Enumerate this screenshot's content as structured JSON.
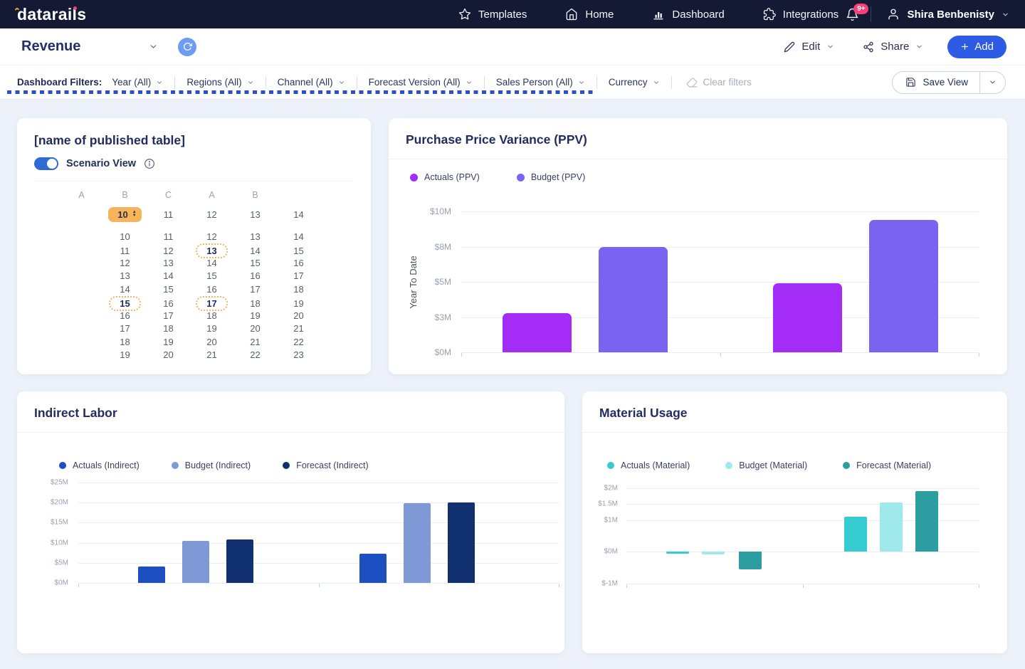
{
  "navbar": {
    "logo": "datarails",
    "items": [
      {
        "label": "Templates"
      },
      {
        "label": "Home"
      },
      {
        "label": "Dashboard"
      },
      {
        "label": "Integrations"
      }
    ],
    "notification_badge": "9+",
    "user": "Shira Benbenisty"
  },
  "toolbar": {
    "title": "Revenue",
    "edit_label": "Edit",
    "share_label": "Share",
    "add_label": "Add"
  },
  "filter_bar": {
    "label": "Dashboard Filters:",
    "filters": [
      "Year (All)",
      "Regions (All)",
      "Channel (All)",
      "Forecast Version (All)",
      "Sales Person (All)",
      "Currency"
    ],
    "clear_label": "Clear filters",
    "save_view_label": "Save View"
  },
  "published_table": {
    "title": "[name of published table]",
    "toggle_label": "Scenario View",
    "toggle_on": true,
    "headers": [
      "A",
      "B",
      "C",
      "A",
      "B"
    ],
    "rows": [
      [
        10,
        11,
        12,
        13,
        14
      ],
      [
        10,
        11,
        12,
        13,
        14
      ],
      [
        11,
        12,
        13,
        14,
        15
      ],
      [
        12,
        13,
        14,
        15,
        16
      ],
      [
        13,
        14,
        15,
        16,
        17
      ],
      [
        14,
        15,
        16,
        17,
        18
      ],
      [
        15,
        16,
        17,
        18,
        19
      ],
      [
        16,
        17,
        18,
        19,
        20
      ],
      [
        17,
        18,
        19,
        20,
        21
      ],
      [
        18,
        19,
        20,
        21,
        22
      ],
      [
        19,
        20,
        21,
        22,
        23
      ]
    ],
    "spinner": {
      "row": 0,
      "col": 0,
      "value": 10
    },
    "dotted": [
      [
        2,
        2
      ],
      [
        6,
        0
      ],
      [
        6,
        2
      ]
    ]
  },
  "charts": {
    "ppv": {
      "type": "bar",
      "title": "Purchase Price Variance (PPV)",
      "ylabel": "Year To Date",
      "legend": [
        {
          "label": "Actuals (PPV)",
          "color": "#A32CF7"
        },
        {
          "label": "Budget (PPV)",
          "color": "#7B63F2"
        }
      ],
      "ymin": 0,
      "ymax": 10,
      "ticks": [
        {
          "label": "$10M",
          "value": 10
        },
        {
          "label": "$8M",
          "value": 7.5
        },
        {
          "label": "$5M",
          "value": 5
        },
        {
          "label": "$3M",
          "value": 2.5
        },
        {
          "label": "$0M",
          "value": 0
        }
      ],
      "groups": [
        [
          2.8,
          7.5
        ],
        [
          4.9,
          9.4
        ]
      ]
    },
    "indirect": {
      "type": "bar",
      "title": "Indirect Labor",
      "ylabel": "",
      "legend": [
        {
          "label": "Actuals (Indirect)",
          "color": "#1D4EC2"
        },
        {
          "label": "Budget (Indirect)",
          "color": "#7E99D6"
        },
        {
          "label": "Forecast (Indirect)",
          "color": "#11306F"
        }
      ],
      "ymin": 0,
      "ymax": 25,
      "ticks": [
        {
          "label": "$25M",
          "value": 25
        },
        {
          "label": "$20M",
          "value": 20
        },
        {
          "label": "$15M",
          "value": 15
        },
        {
          "label": "$10M",
          "value": 10
        },
        {
          "label": "$5M",
          "value": 5
        },
        {
          "label": "$0M",
          "value": 0
        }
      ],
      "groups": [
        [
          4.1,
          10.4,
          10.9
        ],
        [
          7.2,
          19.8,
          20.1
        ]
      ]
    },
    "material": {
      "type": "bar",
      "title": "Material Usage",
      "ylabel": "",
      "legend": [
        {
          "label": "Actuals (Material)",
          "color": "#35CBD1"
        },
        {
          "label": "Budget (Material)",
          "color": "#9FE9EB"
        },
        {
          "label": "Forecast (Material)",
          "color": "#2C9EA2"
        }
      ],
      "ymin": -1,
      "ymax": 2,
      "ticks": [
        {
          "label": "$2M",
          "value": 2
        },
        {
          "label": "$1.5M",
          "value": 1.5
        },
        {
          "label": "$1M",
          "value": 1
        },
        {
          "label": "$0M",
          "value": 0
        },
        {
          "label": "$-1M",
          "value": -1
        }
      ],
      "groups": [
        [
          -0.07,
          -0.09,
          -0.55
        ],
        [
          1.1,
          1.55,
          1.9
        ]
      ]
    }
  },
  "colors": {
    "navbar_bg": "#141A33",
    "page_bg": "#EDF2FA",
    "accent_blue": "#2D5BE3",
    "dashed_indicator": "#2B50C8",
    "badge_pink": "#F5407A",
    "spinner_orange": "#F7B55B",
    "highlight_border_orange": "#F2B763"
  }
}
